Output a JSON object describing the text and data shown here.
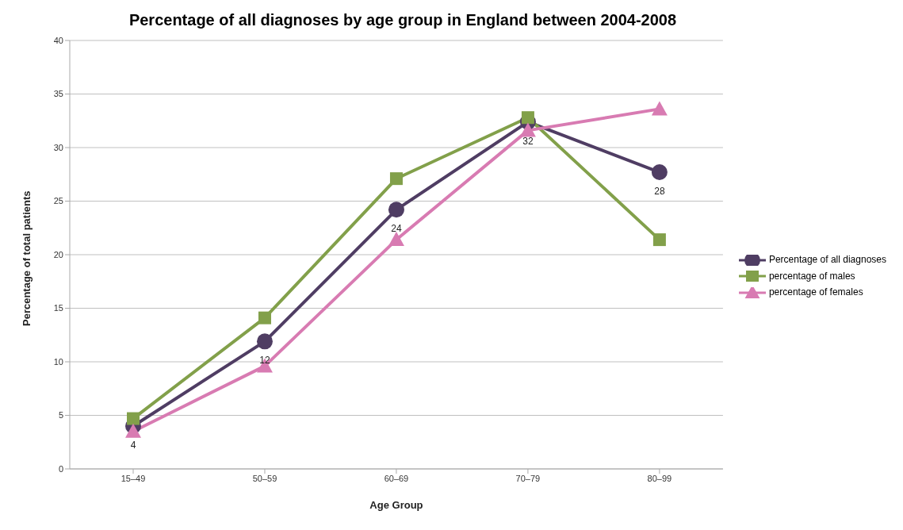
{
  "chart_data": {
    "type": "line",
    "title": "Percentage of all diagnoses by age group in England between 2004-2008",
    "xlabel": "Age Group",
    "ylabel": "Percentage of total patients",
    "categories": [
      "15–49",
      "50–59",
      "60–69",
      "70–79",
      "80–99"
    ],
    "series": [
      {
        "name": "Percentage of all diagnoses",
        "color": "#4f3d63",
        "marker": "circle",
        "values": [
          4.0,
          11.9,
          24.2,
          32.4,
          27.7
        ],
        "value_labels": [
          "4",
          "12",
          "24",
          "32",
          "28"
        ]
      },
      {
        "name": "percentage of males",
        "color": "#82a04a",
        "marker": "square",
        "values": [
          4.7,
          14.1,
          27.1,
          32.8,
          21.4
        ]
      },
      {
        "name": "percentage of females",
        "color": "#d87bb2",
        "marker": "triangle",
        "values": [
          3.5,
          9.6,
          21.4,
          31.6,
          33.6
        ]
      }
    ],
    "ylim": [
      0,
      40
    ],
    "yticks": [
      0,
      5,
      10,
      15,
      20,
      25,
      30,
      35,
      40
    ],
    "grid": "y",
    "legend": "right",
    "line_style": "solid"
  }
}
